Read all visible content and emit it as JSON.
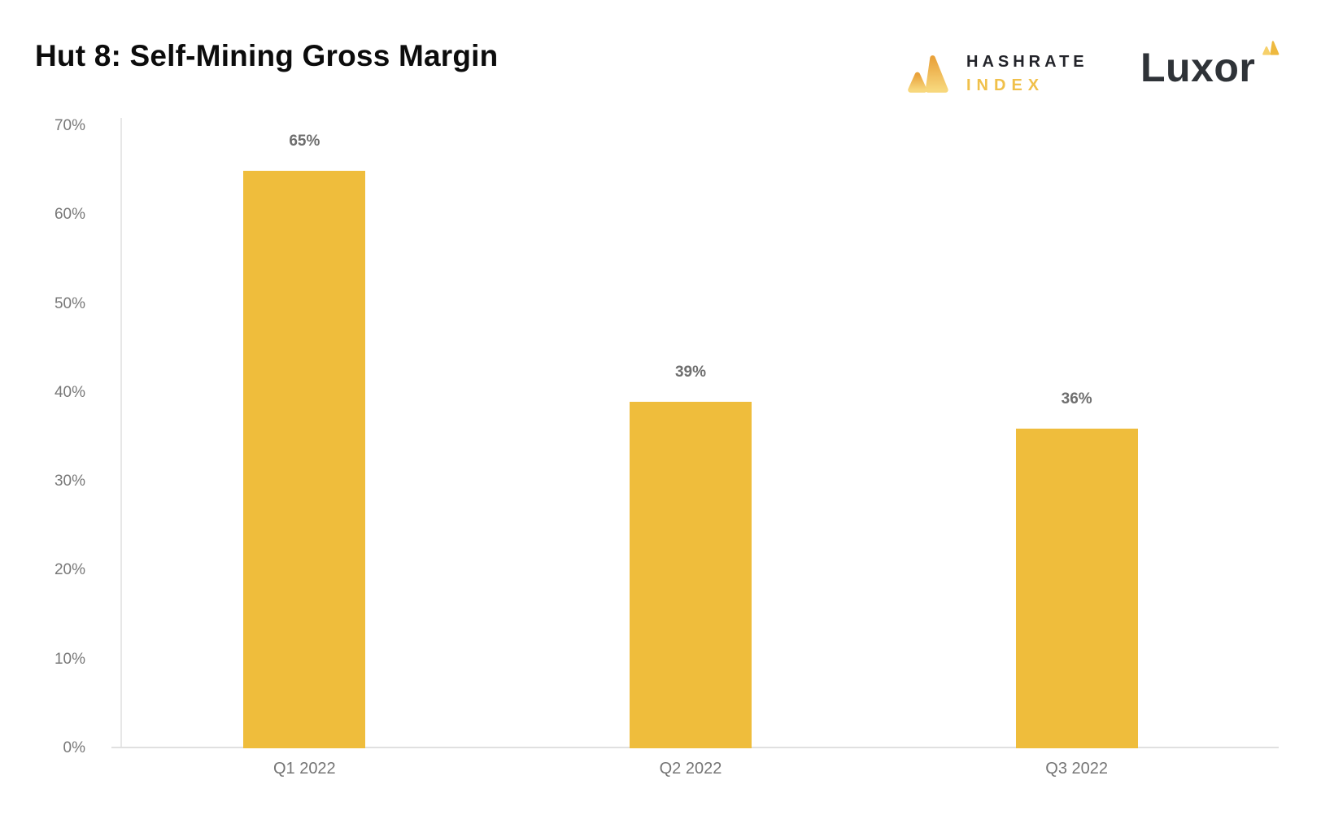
{
  "header": {
    "title": "Hut 8: Self-Mining Gross Margin",
    "hashrate_logo": {
      "line1": "HASHRATE",
      "line2": "INDEX"
    },
    "luxor_logo": {
      "text": "Luxor"
    }
  },
  "colors": {
    "bar": "#efbd3c",
    "title_text": "#0c0c0c",
    "axis_line": "#e3e3e3",
    "tick_label": "#787878",
    "data_label": "#6e6e6e",
    "category_label": "#757575",
    "hashrate_text": "#23242a",
    "index_gold": "#f0c04a",
    "luxor_text": "#2f3338",
    "logo_gradient_top": "#e9a23b",
    "logo_gradient_bottom": "#f7d77c"
  },
  "chart_data": {
    "type": "bar",
    "title": "Hut 8: Self-Mining Gross Margin",
    "categories": [
      "Q1 2022",
      "Q2 2022",
      "Q3 2022"
    ],
    "values": [
      65,
      39,
      36
    ],
    "data_labels": [
      "65%",
      "39%",
      "36%"
    ],
    "xlabel": "",
    "ylabel": "",
    "ylim": [
      0,
      70
    ],
    "yticks": [
      0,
      10,
      20,
      30,
      40,
      50,
      60,
      70
    ],
    "ytick_labels": [
      "0%",
      "10%",
      "20%",
      "30%",
      "40%",
      "50%",
      "60%",
      "70%"
    ],
    "grid": false,
    "legend": false,
    "bar_color": "#efbd3c"
  }
}
